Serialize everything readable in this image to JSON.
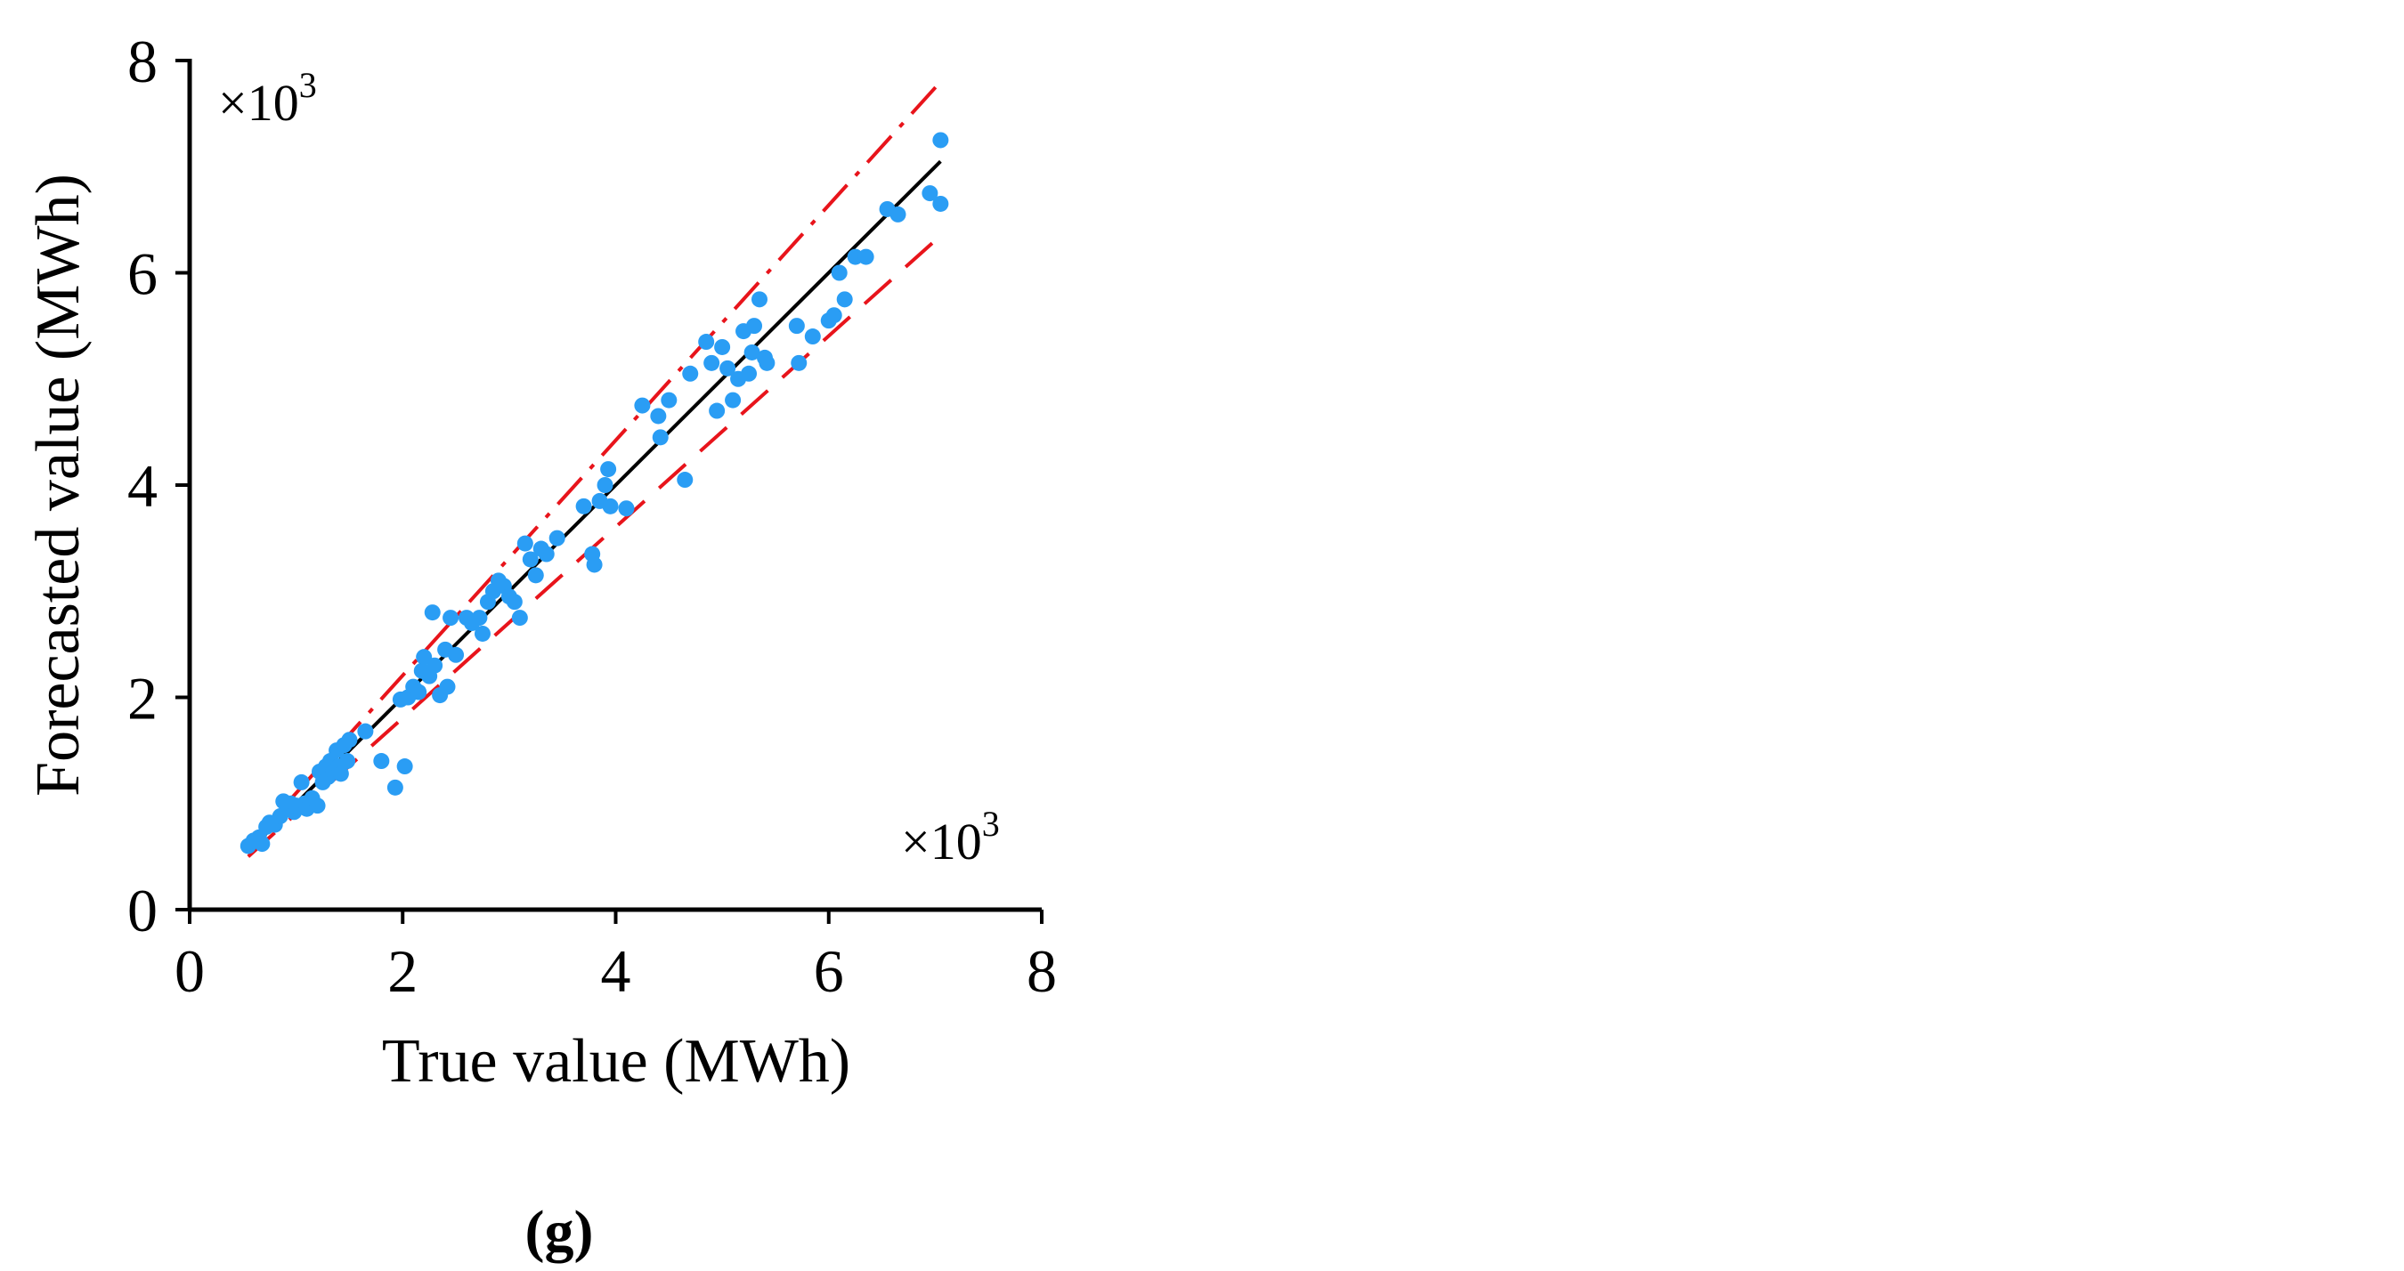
{
  "chart_data": {
    "type": "scatter",
    "xlabel": "True value (MWh)",
    "ylabel": "Forecasted value (MWh)",
    "x_multiplier": "×10",
    "y_multiplier": "×10",
    "multiplier_exponent": "3",
    "xlim": [
      0,
      8
    ],
    "ylim": [
      0,
      8
    ],
    "xticks": [
      "0",
      "2",
      "4",
      "6",
      "8"
    ],
    "yticks": [
      "0",
      "2",
      "4",
      "6",
      "8"
    ],
    "grid": false,
    "panel_label": "(g)",
    "colors": {
      "points": "#2a9df4",
      "fit_line": "#000000",
      "bounds": "#e8141b",
      "axes": "#000000"
    },
    "lines": [
      {
        "kind": "fit",
        "style": "solid",
        "x": [
          0.55,
          7.05
        ],
        "y": [
          0.55,
          7.05
        ]
      },
      {
        "kind": "upper-bound",
        "style": "dash-dot",
        "x": [
          0.55,
          7.05
        ],
        "y": [
          0.6,
          7.8
        ]
      },
      {
        "kind": "lower-bound",
        "style": "dashed",
        "x": [
          0.55,
          7.05
        ],
        "y": [
          0.5,
          6.35
        ]
      }
    ],
    "points": [
      [
        0.55,
        0.6
      ],
      [
        0.6,
        0.65
      ],
      [
        0.65,
        0.68
      ],
      [
        0.68,
        0.62
      ],
      [
        0.72,
        0.78
      ],
      [
        0.75,
        0.82
      ],
      [
        0.8,
        0.8
      ],
      [
        0.85,
        0.88
      ],
      [
        0.88,
        1.02
      ],
      [
        0.92,
        0.95
      ],
      [
        0.95,
        1.0
      ],
      [
        0.98,
        0.92
      ],
      [
        1.0,
        0.98
      ],
      [
        1.05,
        1.2
      ],
      [
        1.08,
        1.0
      ],
      [
        1.1,
        0.95
      ],
      [
        1.15,
        1.05
      ],
      [
        1.2,
        0.98
      ],
      [
        1.22,
        1.3
      ],
      [
        1.25,
        1.2
      ],
      [
        1.28,
        1.35
      ],
      [
        1.3,
        1.25
      ],
      [
        1.32,
        1.4
      ],
      [
        1.35,
        1.3
      ],
      [
        1.38,
        1.5
      ],
      [
        1.4,
        1.35
      ],
      [
        1.42,
        1.28
      ],
      [
        1.45,
        1.55
      ],
      [
        1.48,
        1.4
      ],
      [
        1.5,
        1.6
      ],
      [
        1.65,
        1.68
      ],
      [
        1.8,
        1.4
      ],
      [
        1.93,
        1.15
      ],
      [
        1.98,
        1.98
      ],
      [
        2.02,
        1.35
      ],
      [
        2.05,
        2.0
      ],
      [
        2.1,
        2.1
      ],
      [
        2.15,
        2.05
      ],
      [
        2.18,
        2.25
      ],
      [
        2.2,
        2.38
      ],
      [
        2.25,
        2.2
      ],
      [
        2.28,
        2.8
      ],
      [
        2.3,
        2.3
      ],
      [
        2.35,
        2.02
      ],
      [
        2.4,
        2.45
      ],
      [
        2.42,
        2.1
      ],
      [
        2.45,
        2.75
      ],
      [
        2.5,
        2.4
      ],
      [
        2.6,
        2.75
      ],
      [
        2.65,
        2.7
      ],
      [
        2.72,
        2.75
      ],
      [
        2.75,
        2.6
      ],
      [
        2.8,
        2.9
      ],
      [
        2.85,
        3.0
      ],
      [
        2.9,
        3.1
      ],
      [
        2.95,
        3.05
      ],
      [
        3.0,
        2.95
      ],
      [
        3.05,
        2.9
      ],
      [
        3.1,
        2.75
      ],
      [
        3.15,
        3.45
      ],
      [
        3.2,
        3.3
      ],
      [
        3.25,
        3.15
      ],
      [
        3.3,
        3.4
      ],
      [
        3.35,
        3.35
      ],
      [
        3.45,
        3.5
      ],
      [
        3.7,
        3.8
      ],
      [
        3.78,
        3.35
      ],
      [
        3.8,
        3.25
      ],
      [
        3.85,
        3.85
      ],
      [
        3.9,
        4.0
      ],
      [
        3.93,
        4.15
      ],
      [
        3.95,
        3.8
      ],
      [
        4.1,
        3.78
      ],
      [
        4.25,
        4.75
      ],
      [
        4.4,
        4.65
      ],
      [
        4.42,
        4.45
      ],
      [
        4.5,
        4.8
      ],
      [
        4.65,
        4.05
      ],
      [
        4.7,
        5.05
      ],
      [
        4.85,
        5.35
      ],
      [
        4.9,
        5.15
      ],
      [
        4.95,
        4.7
      ],
      [
        5.0,
        5.3
      ],
      [
        5.05,
        5.1
      ],
      [
        5.1,
        4.8
      ],
      [
        5.15,
        5.0
      ],
      [
        5.2,
        5.45
      ],
      [
        5.25,
        5.05
      ],
      [
        5.28,
        5.25
      ],
      [
        5.3,
        5.5
      ],
      [
        5.35,
        5.75
      ],
      [
        5.4,
        5.2
      ],
      [
        5.42,
        5.15
      ],
      [
        5.7,
        5.5
      ],
      [
        5.72,
        5.15
      ],
      [
        5.85,
        5.4
      ],
      [
        6.0,
        5.55
      ],
      [
        6.05,
        5.6
      ],
      [
        6.1,
        6.0
      ],
      [
        6.15,
        5.75
      ],
      [
        6.25,
        6.15
      ],
      [
        6.35,
        6.15
      ],
      [
        6.55,
        6.6
      ],
      [
        6.65,
        6.55
      ],
      [
        6.95,
        6.75
      ],
      [
        7.05,
        7.25
      ],
      [
        7.05,
        6.65
      ]
    ]
  }
}
